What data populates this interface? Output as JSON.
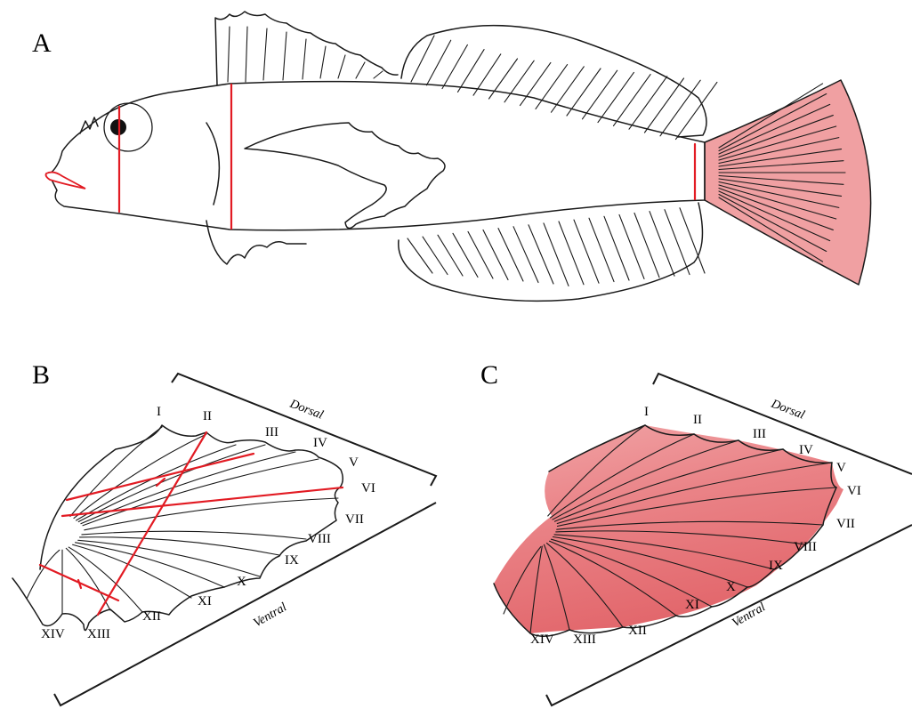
{
  "panels": {
    "a": {
      "letter": "A"
    },
    "b": {
      "letter": "B",
      "dorsal": "Dorsal",
      "ventral": "Ventral",
      "rays": [
        "I",
        "II",
        "III",
        "IV",
        "V",
        "VI",
        "VII",
        "VIII",
        "IX",
        "X",
        "XI",
        "XII",
        "XIII",
        "XIV"
      ]
    },
    "c": {
      "letter": "C",
      "dorsal": "Dorsal",
      "ventral": "Ventral",
      "rays": [
        "I",
        "II",
        "III",
        "IV",
        "V",
        "VI",
        "VII",
        "VIII",
        "IX",
        "X",
        "XI",
        "XII",
        "XIII",
        "XIV"
      ]
    }
  },
  "colors": {
    "measurement": "#e21b23",
    "highlight": "#f0a0a2",
    "highlight_dark": "#e77b7f",
    "outline": "#1a1a1a"
  }
}
